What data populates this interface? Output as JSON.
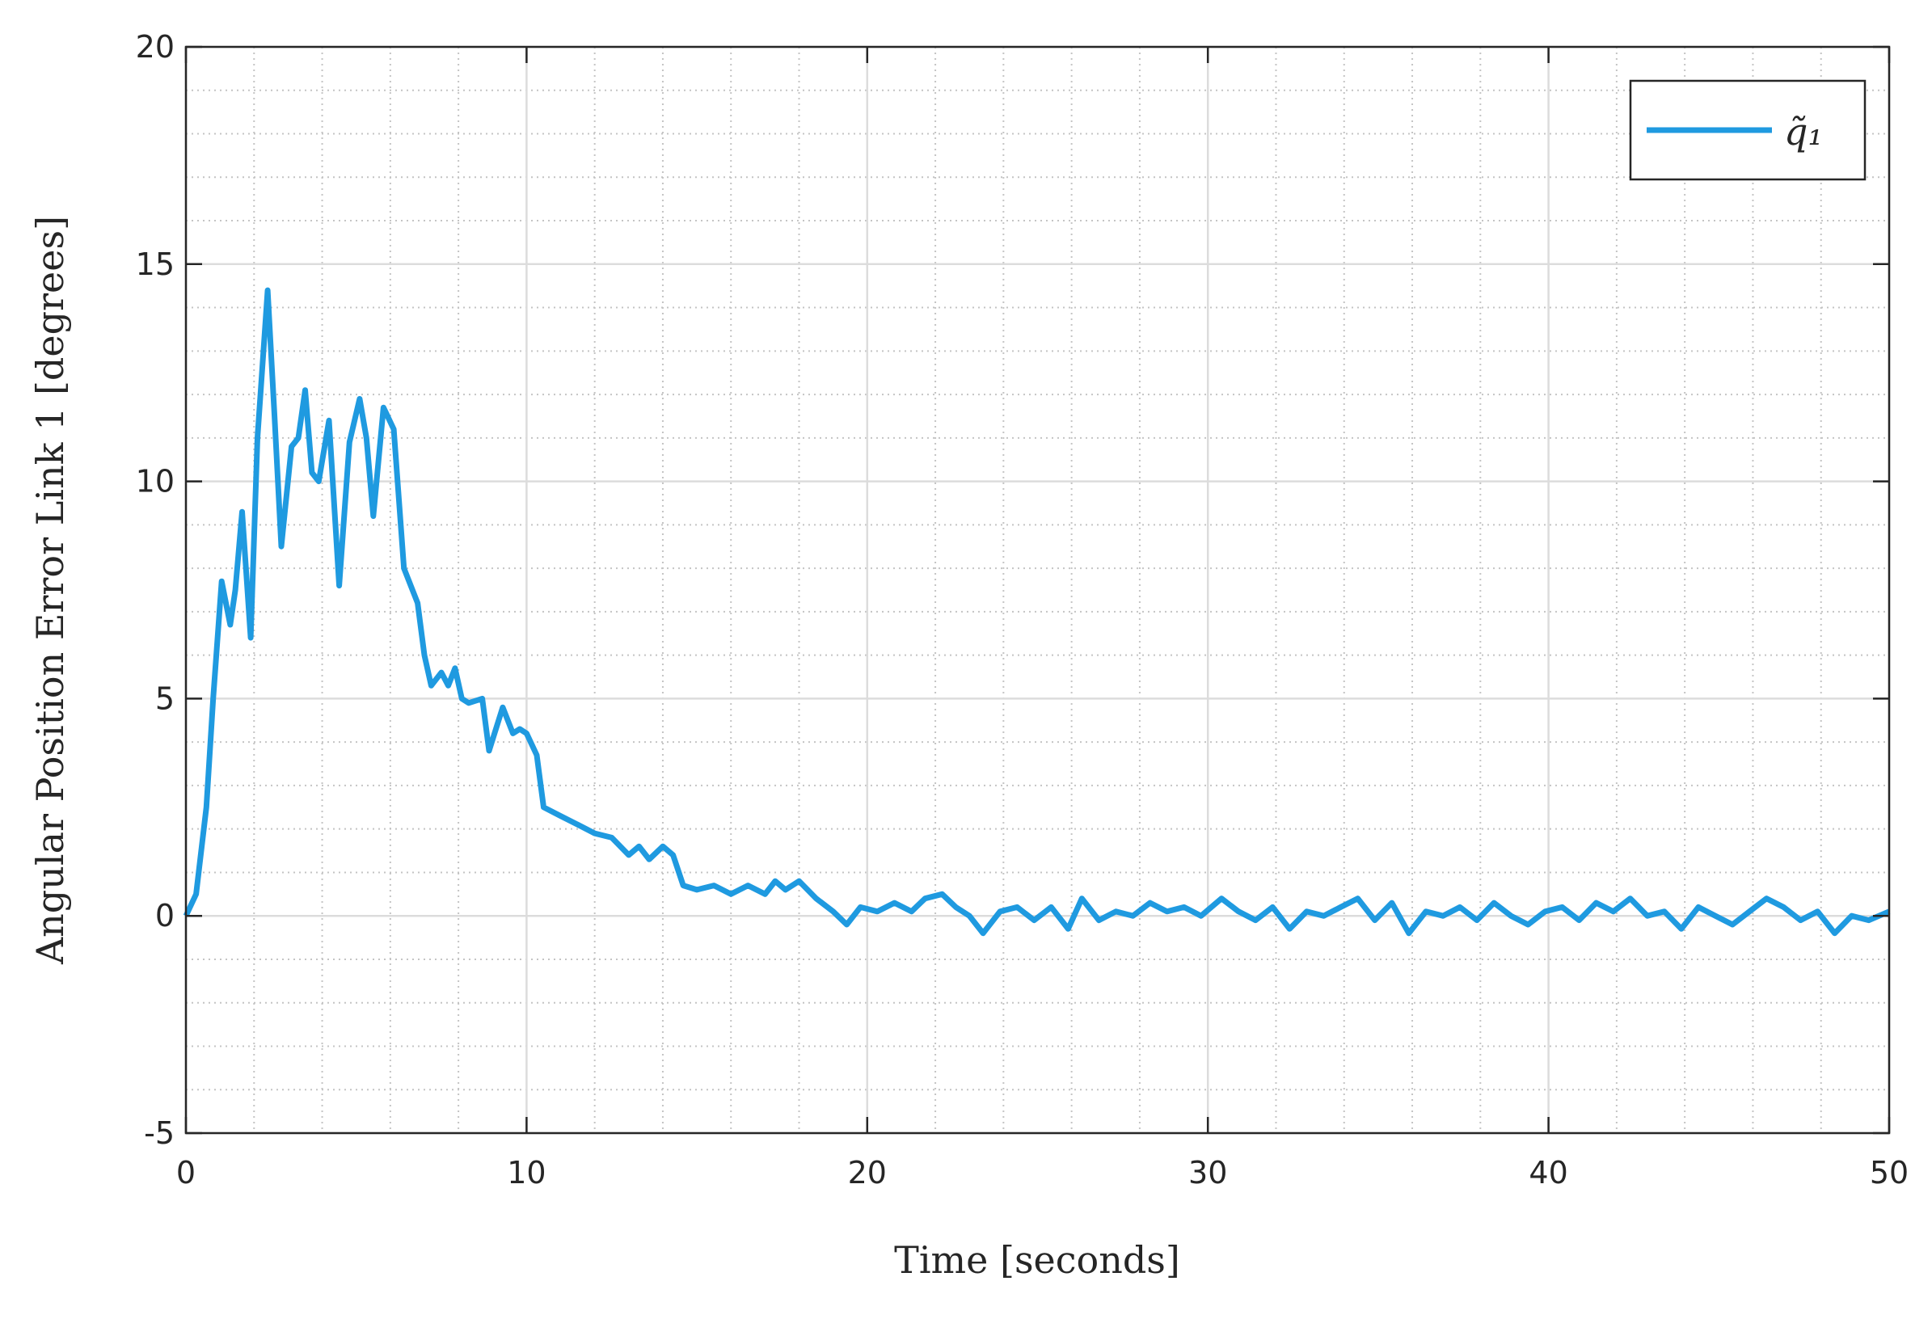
{
  "chart_data": {
    "type": "line",
    "xlabel": "Time [seconds]",
    "ylabel": "Angular Position Error Link 1 [degrees]",
    "xlim": [
      0,
      50
    ],
    "xticks": [
      0,
      10,
      20,
      30,
      40,
      50
    ],
    "ylim": [
      -5,
      20
    ],
    "yticks": [
      -5,
      0,
      5,
      10,
      15,
      20
    ],
    "grid": true,
    "minor_grid": true,
    "legend": "upper right",
    "series": [
      {
        "name": "q̃₁",
        "color": "#1f9ae0",
        "x": [
          0,
          0.3,
          0.6,
          0.8,
          1.05,
          1.3,
          1.45,
          1.65,
          1.9,
          2.1,
          2.4,
          2.6,
          2.8,
          3.1,
          3.3,
          3.5,
          3.7,
          3.9,
          4.2,
          4.5,
          4.8,
          5.1,
          5.3,
          5.5,
          5.8,
          6.1,
          6.4,
          6.8,
          7.0,
          7.2,
          7.5,
          7.7,
          7.9,
          8.1,
          8.3,
          8.7,
          8.9,
          9.3,
          9.6,
          9.8,
          10.0,
          10.3,
          10.5,
          11.0,
          11.5,
          12.0,
          12.5,
          13.0,
          13.3,
          13.6,
          14.0,
          14.3,
          14.6,
          15.0,
          15.5,
          16.0,
          16.5,
          17.0,
          17.3,
          17.6,
          18.0,
          18.5,
          19.0,
          19.4,
          19.8,
          20.3,
          20.8,
          21.3,
          21.7,
          22.2,
          22.6,
          23.0,
          23.4,
          23.9,
          24.4,
          24.9,
          25.4,
          25.9,
          26.3,
          26.8,
          27.3,
          27.8,
          28.3,
          28.8,
          29.3,
          29.8,
          30.4,
          30.9,
          31.4,
          31.9,
          32.4,
          32.9,
          33.4,
          33.9,
          34.4,
          34.9,
          35.4,
          35.9,
          36.4,
          36.9,
          37.4,
          37.9,
          38.4,
          38.9,
          39.4,
          39.9,
          40.4,
          40.9,
          41.4,
          41.9,
          42.4,
          42.9,
          43.4,
          43.9,
          44.4,
          44.9,
          45.4,
          45.9,
          46.4,
          46.9,
          47.4,
          47.9,
          48.4,
          48.9,
          49.4,
          50.0
        ],
        "values": [
          0,
          0.5,
          2.5,
          5.0,
          7.7,
          6.7,
          7.5,
          9.3,
          6.4,
          11.0,
          14.4,
          11.5,
          8.5,
          10.8,
          11.0,
          12.1,
          10.2,
          10.0,
          11.4,
          7.6,
          10.9,
          11.9,
          11.0,
          9.2,
          11.7,
          11.2,
          8.0,
          7.2,
          6.0,
          5.3,
          5.6,
          5.3,
          5.7,
          5.0,
          4.9,
          5.0,
          3.8,
          4.8,
          4.2,
          4.3,
          4.2,
          3.7,
          2.5,
          2.3,
          2.1,
          1.9,
          1.8,
          1.4,
          1.6,
          1.3,
          1.6,
          1.4,
          0.7,
          0.6,
          0.7,
          0.5,
          0.7,
          0.5,
          0.8,
          0.6,
          0.8,
          0.4,
          0.1,
          -0.2,
          0.2,
          0.1,
          0.3,
          0.1,
          0.4,
          0.5,
          0.2,
          0.0,
          -0.4,
          0.1,
          0.2,
          -0.1,
          0.2,
          -0.3,
          0.4,
          -0.1,
          0.1,
          0.0,
          0.3,
          0.1,
          0.2,
          0.0,
          0.4,
          0.1,
          -0.1,
          0.2,
          -0.3,
          0.1,
          0.0,
          0.2,
          0.4,
          -0.1,
          0.3,
          -0.4,
          0.1,
          0.0,
          0.2,
          -0.1,
          0.3,
          0.0,
          -0.2,
          0.1,
          0.2,
          -0.1,
          0.3,
          0.1,
          0.4,
          0.0,
          0.1,
          -0.3,
          0.2,
          0.0,
          -0.2,
          0.1,
          0.4,
          0.2,
          -0.1,
          0.1,
          -0.4,
          0.0,
          -0.1,
          0.1
        ]
      }
    ]
  }
}
